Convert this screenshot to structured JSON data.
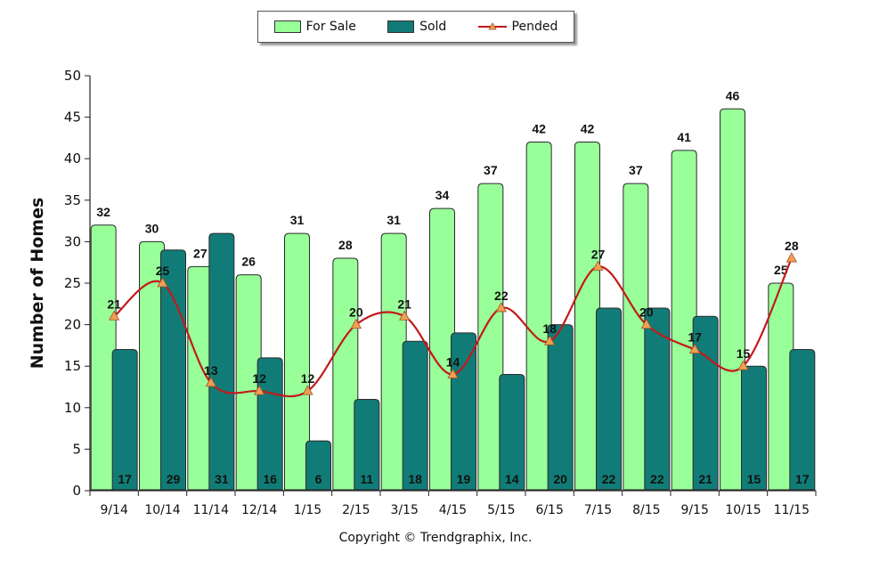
{
  "chart_data": {
    "type": "bar",
    "categories": [
      "9/14",
      "10/14",
      "11/14",
      "12/14",
      "1/15",
      "2/15",
      "3/15",
      "4/15",
      "5/15",
      "6/15",
      "7/15",
      "8/15",
      "9/15",
      "10/15",
      "11/15"
    ],
    "series": [
      {
        "name": "For Sale",
        "type": "bar",
        "values": [
          32,
          30,
          27,
          26,
          31,
          28,
          31,
          34,
          37,
          42,
          42,
          37,
          41,
          46,
          25
        ]
      },
      {
        "name": "Sold",
        "type": "bar",
        "values": [
          17,
          29,
          31,
          16,
          6,
          11,
          18,
          19,
          14,
          20,
          22,
          22,
          21,
          15,
          17
        ]
      },
      {
        "name": "Pended",
        "type": "line",
        "values": [
          21,
          25,
          13,
          12,
          12,
          20,
          21,
          14,
          22,
          18,
          27,
          20,
          17,
          15,
          28
        ]
      }
    ],
    "ylabel": "Number of Homes",
    "xlabel": "",
    "ylim": [
      0,
      50
    ],
    "yticks": [
      0,
      5,
      10,
      15,
      20,
      25,
      30,
      35,
      40,
      45,
      50
    ],
    "grid": false,
    "legend_position": "top-center"
  },
  "legend": {
    "for_sale": "For Sale",
    "sold": "Sold",
    "pended": "Pended"
  },
  "colors": {
    "for_sale": "#99ff99",
    "sold": "#117c77",
    "pended": "#c21a1a",
    "marker": "#f0a050"
  },
  "footer": {
    "copyright": "Copyright © Trendgraphix, Inc."
  }
}
